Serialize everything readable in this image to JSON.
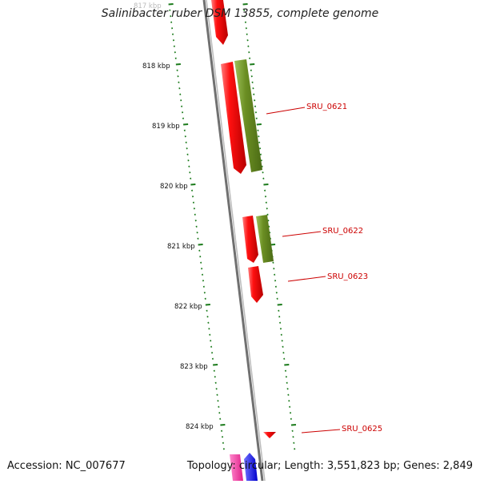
{
  "title": "Salinibacter ruber DSM 13855, complete genome",
  "accession": "Accession: NC_007677",
  "summary": "Topology: circular; Length: 3,551,823 bp; Genes: 2,849",
  "kbp_labels": [
    "817 kbp",
    "818 kbp",
    "819 kbp",
    "820 kbp",
    "821 kbp",
    "822 kbp",
    "823 kbp",
    "824 kbp"
  ],
  "gene_labels": [
    "SRU_0621",
    "SRU_0622",
    "SRU_0623",
    "SRU_0625"
  ],
  "colors": {
    "backbone": "#777777",
    "gene_red": "#ee0000",
    "gene_olive": "#6b8e23",
    "gene_pink": "#ff3399",
    "gene_blue": "#1a1aff",
    "tick_green": "#1a7a1a",
    "label_red": "#cc0000"
  }
}
